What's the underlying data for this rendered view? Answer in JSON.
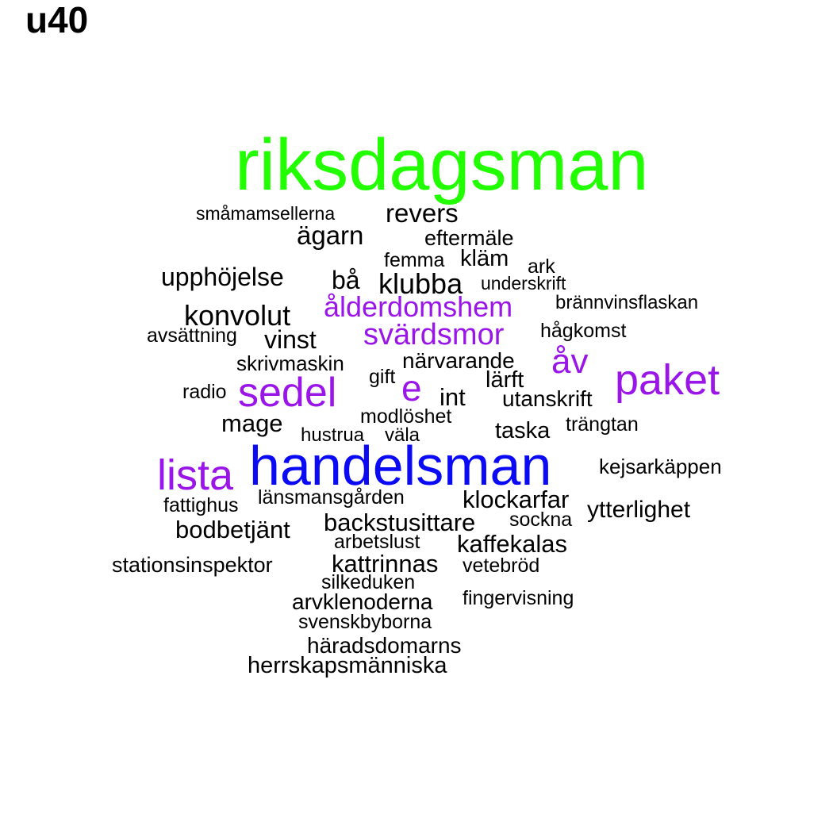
{
  "title": "u40",
  "colors": {
    "green": "#22ff00",
    "blue": "#0a0af5",
    "purple": "#9a16e8",
    "black": "#000000",
    "background": "#ffffff"
  },
  "words": [
    {
      "text": "riksdagsman",
      "color": "green"
    },
    {
      "text": "handelsman",
      "color": "blue"
    },
    {
      "text": "paket",
      "color": "purple"
    },
    {
      "text": "sedel",
      "color": "purple"
    },
    {
      "text": "lista",
      "color": "purple"
    },
    {
      "text": "e",
      "color": "purple"
    },
    {
      "text": "åv",
      "color": "purple"
    },
    {
      "text": "svärdsmor",
      "color": "purple"
    },
    {
      "text": "ålderdomshem",
      "color": "purple"
    },
    {
      "text": "småmamsellerna",
      "color": "black"
    },
    {
      "text": "revers",
      "color": "black"
    },
    {
      "text": "ägarn",
      "color": "black"
    },
    {
      "text": "eftermäle",
      "color": "black"
    },
    {
      "text": "femma",
      "color": "black"
    },
    {
      "text": "kläm",
      "color": "black"
    },
    {
      "text": "ark",
      "color": "black"
    },
    {
      "text": "upphöjelse",
      "color": "black"
    },
    {
      "text": "bå",
      "color": "black"
    },
    {
      "text": "klubba",
      "color": "black"
    },
    {
      "text": "underskrift",
      "color": "black"
    },
    {
      "text": "brännvinsflaskan",
      "color": "black"
    },
    {
      "text": "konvolut",
      "color": "black"
    },
    {
      "text": "avsättning",
      "color": "black"
    },
    {
      "text": "vinst",
      "color": "black"
    },
    {
      "text": "hågkomst",
      "color": "black"
    },
    {
      "text": "skrivmaskin",
      "color": "black"
    },
    {
      "text": "närvarande",
      "color": "black"
    },
    {
      "text": "gift",
      "color": "black"
    },
    {
      "text": "lärft",
      "color": "black"
    },
    {
      "text": "radio",
      "color": "black"
    },
    {
      "text": "int",
      "color": "black"
    },
    {
      "text": "utanskrift",
      "color": "black"
    },
    {
      "text": "modlöshet",
      "color": "black"
    },
    {
      "text": "mage",
      "color": "black"
    },
    {
      "text": "hustrua",
      "color": "black"
    },
    {
      "text": "väla",
      "color": "black"
    },
    {
      "text": "taska",
      "color": "black"
    },
    {
      "text": "trängtan",
      "color": "black"
    },
    {
      "text": "kejsarkäppen",
      "color": "black"
    },
    {
      "text": "fattighus",
      "color": "black"
    },
    {
      "text": "länsmansgården",
      "color": "black"
    },
    {
      "text": "klockarfar",
      "color": "black"
    },
    {
      "text": "ytterlighet",
      "color": "black"
    },
    {
      "text": "bodbetjänt",
      "color": "black"
    },
    {
      "text": "backstusittare",
      "color": "black"
    },
    {
      "text": "sockna",
      "color": "black"
    },
    {
      "text": "arbetslust",
      "color": "black"
    },
    {
      "text": "kaffekalas",
      "color": "black"
    },
    {
      "text": "stationsinspektor",
      "color": "black"
    },
    {
      "text": "kattrinnas",
      "color": "black"
    },
    {
      "text": "vetebröd",
      "color": "black"
    },
    {
      "text": "silkeduken",
      "color": "black"
    },
    {
      "text": "arvklenoderna",
      "color": "black"
    },
    {
      "text": "fingervisning",
      "color": "black"
    },
    {
      "text": "svenskbyborna",
      "color": "black"
    },
    {
      "text": "häradsdomarns",
      "color": "black"
    },
    {
      "text": "herrskapsmänniska",
      "color": "black"
    }
  ]
}
